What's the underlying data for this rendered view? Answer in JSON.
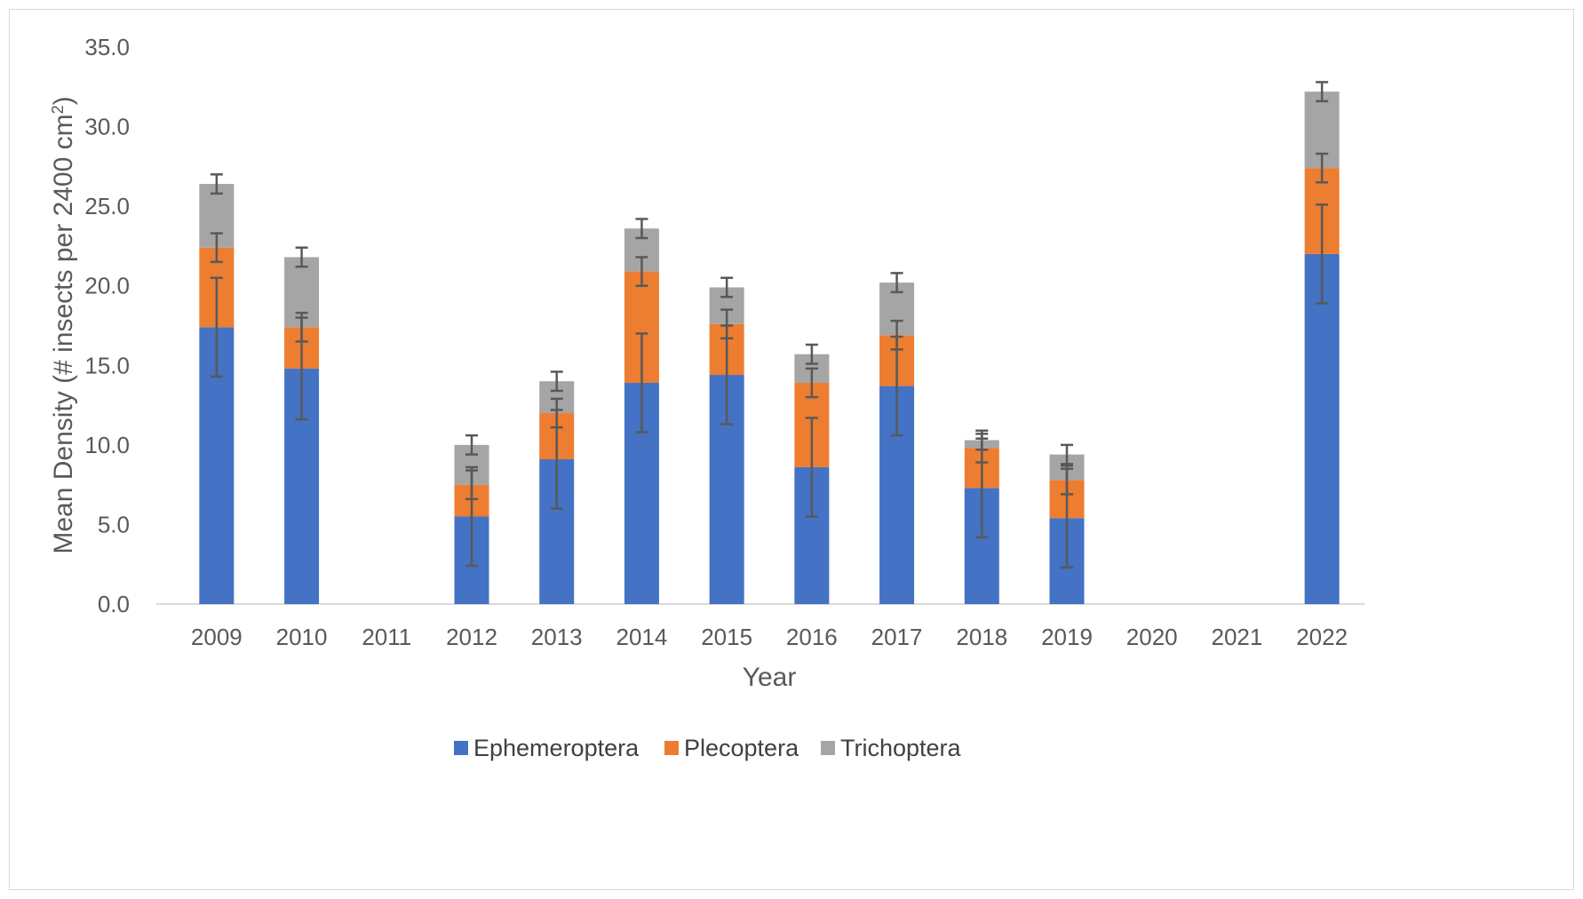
{
  "chart_data": {
    "type": "bar",
    "stacked": true,
    "title": "",
    "xlabel": "Year",
    "ylabel": "Mean Density (# insects per 2400 cm²)",
    "ylabel_parts": {
      "main": "Mean Density (# insects per 2400 cm",
      "sup": "2",
      "end": ")"
    },
    "ylim": [
      0,
      35
    ],
    "yticks": [
      "0.0",
      "5.0",
      "10.0",
      "15.0",
      "20.0",
      "25.0",
      "30.0",
      "35.0"
    ],
    "grid": false,
    "legend_position": "bottom",
    "categories": [
      "2009",
      "2010",
      "2011",
      "2012",
      "2013",
      "2014",
      "2015",
      "2016",
      "2017",
      "2018",
      "2019",
      "2020",
      "2021",
      "2022"
    ],
    "series": [
      {
        "name": "Ephemeroptera",
        "color": "#4472c4",
        "values": [
          17.4,
          14.8,
          null,
          5.5,
          9.1,
          13.9,
          14.4,
          8.6,
          13.7,
          7.3,
          5.4,
          null,
          null,
          22.0
        ],
        "error": [
          3.1,
          3.2,
          null,
          3.1,
          3.1,
          3.1,
          3.1,
          3.1,
          3.1,
          3.1,
          3.1,
          null,
          null,
          3.1
        ]
      },
      {
        "name": "Plecoptera",
        "color": "#ed7d31",
        "values": [
          5.0,
          2.6,
          null,
          2.0,
          2.9,
          7.0,
          3.2,
          5.3,
          3.2,
          2.5,
          2.4,
          null,
          null,
          5.4
        ],
        "error": [
          0.9,
          0.9,
          null,
          0.9,
          0.9,
          0.9,
          0.9,
          0.9,
          0.9,
          0.9,
          0.9,
          null,
          null,
          0.9
        ]
      },
      {
        "name": "Trichoptera",
        "color": "#a5a5a5",
        "values": [
          4.0,
          4.4,
          null,
          2.5,
          2.0,
          2.7,
          2.3,
          1.8,
          3.3,
          0.5,
          1.6,
          null,
          null,
          4.8
        ],
        "error": [
          0.6,
          0.6,
          null,
          0.6,
          0.6,
          0.6,
          0.6,
          0.6,
          0.6,
          0.6,
          0.6,
          null,
          null,
          0.6
        ]
      }
    ]
  }
}
